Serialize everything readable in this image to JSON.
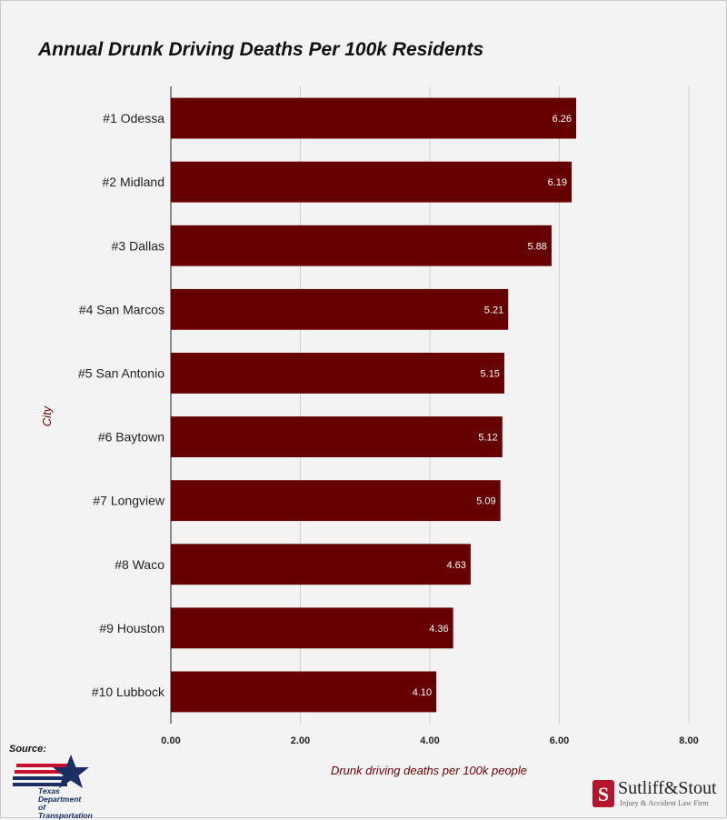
{
  "chart_data": {
    "type": "bar",
    "orientation": "horizontal",
    "title": "Annual Drunk Driving Deaths Per 100k Residents",
    "xlabel": "Drunk driving deaths per 100k people",
    "ylabel": "City",
    "categories": [
      "#1 Odessa",
      "#2 Midland",
      "#3 Dallas",
      "#4 San Marcos",
      "#5 San Antonio",
      "#6 Baytown",
      "#7 Longview",
      "#8 Waco",
      "#9 Houston",
      "#10 Lubbock"
    ],
    "values": [
      6.26,
      6.19,
      5.88,
      5.21,
      5.15,
      5.12,
      5.09,
      4.63,
      4.36,
      4.1
    ],
    "value_labels": [
      "6.26",
      "6.19",
      "5.88",
      "5.21",
      "5.15",
      "5.12",
      "5.09",
      "4.63",
      "4.36",
      "4.10"
    ],
    "xlim": [
      0,
      8
    ],
    "xticks": [
      0,
      2,
      4,
      6,
      8
    ],
    "xtick_labels": [
      "0.00",
      "2.00",
      "4.00",
      "6.00",
      "8.00"
    ],
    "grid": "vertical",
    "bar_color": "#660000"
  },
  "footer": {
    "source_label": "Source:",
    "source_org_lines": [
      "Texas",
      "Department",
      "of Transportation"
    ],
    "brand_name": "Sutliff&Stout",
    "brand_tagline": "Injury & Accident Law Firm"
  },
  "colors": {
    "bar": "#660000",
    "axis_title": "#6b0000",
    "txdot_blue": "#1a2e63",
    "txdot_red": "#c8102e",
    "brand_red": "#b5162b"
  }
}
